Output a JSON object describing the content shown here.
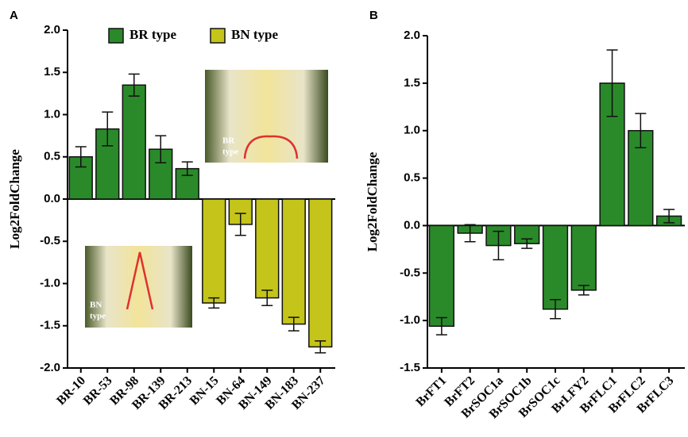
{
  "chart_data": [
    {
      "type": "bar",
      "label": "A",
      "y_label": "Log2FoldChange",
      "categories": [
        "BR-10",
        "BR-53",
        "BR-98",
        "BR-139",
        "BR-213",
        "BN-15",
        "BN-64",
        "BN-149",
        "BN-183",
        "BN-237"
      ],
      "series": [
        {
          "name": "BR type",
          "color": "#2a8a2a",
          "values": [
            0.5,
            0.83,
            1.35,
            0.59,
            0.36,
            null,
            null,
            null,
            null,
            null
          ],
          "errors": [
            0.12,
            0.2,
            0.13,
            0.16,
            0.08,
            null,
            null,
            null,
            null,
            null
          ]
        },
        {
          "name": "BN type",
          "color": "#c4c41a",
          "values": [
            null,
            null,
            null,
            null,
            null,
            -1.23,
            -0.3,
            -1.17,
            -1.48,
            -1.75
          ],
          "errors": [
            null,
            null,
            null,
            null,
            null,
            0.06,
            0.13,
            0.09,
            0.08,
            0.07
          ]
        }
      ],
      "ylim": [
        -2,
        2
      ],
      "yticks": [
        {
          "value": -2,
          "label": "-2.0"
        },
        -1.5,
        {
          "value": -1,
          "label": "-1.0"
        },
        -0.5,
        {
          "value": 0,
          "label": "0.0"
        },
        0.5,
        {
          "value": 1,
          "label": "1.0"
        },
        1.5,
        {
          "value": 2,
          "label": "2.0"
        }
      ],
      "insets": [
        {
          "lines": [
            "BR",
            "type"
          ]
        },
        {
          "lines": [
            "BN",
            "type"
          ]
        }
      ]
    },
    {
      "type": "bar",
      "label": "B",
      "y_label": "Log2FoldChange",
      "italic_categories": true,
      "categories": [
        "BrFT1",
        "BrFT2",
        "BrSOC1a",
        "BrSOC1b",
        "BrSOC1c",
        "BrLFY2",
        "BrFLC1",
        "BrFLC2",
        "BrFLC3"
      ],
      "color": "#2a8a2a",
      "values": [
        -1.06,
        -0.08,
        -0.21,
        -0.19,
        -0.88,
        -0.68,
        1.5,
        1.0,
        0.1
      ],
      "errors": [
        0.09,
        0.09,
        0.15,
        0.05,
        0.1,
        0.05,
        0.35,
        0.18,
        0.07
      ],
      "ylim": [
        -1.5,
        2
      ],
      "yticks": [
        -1.5,
        {
          "value": -1,
          "label": "-1.0"
        },
        -0.5,
        {
          "value": 0,
          "label": "0.0"
        },
        0.5,
        {
          "value": 1,
          "label": "1.0"
        },
        1.5,
        {
          "value": 2,
          "label": "2.0"
        }
      ]
    }
  ]
}
